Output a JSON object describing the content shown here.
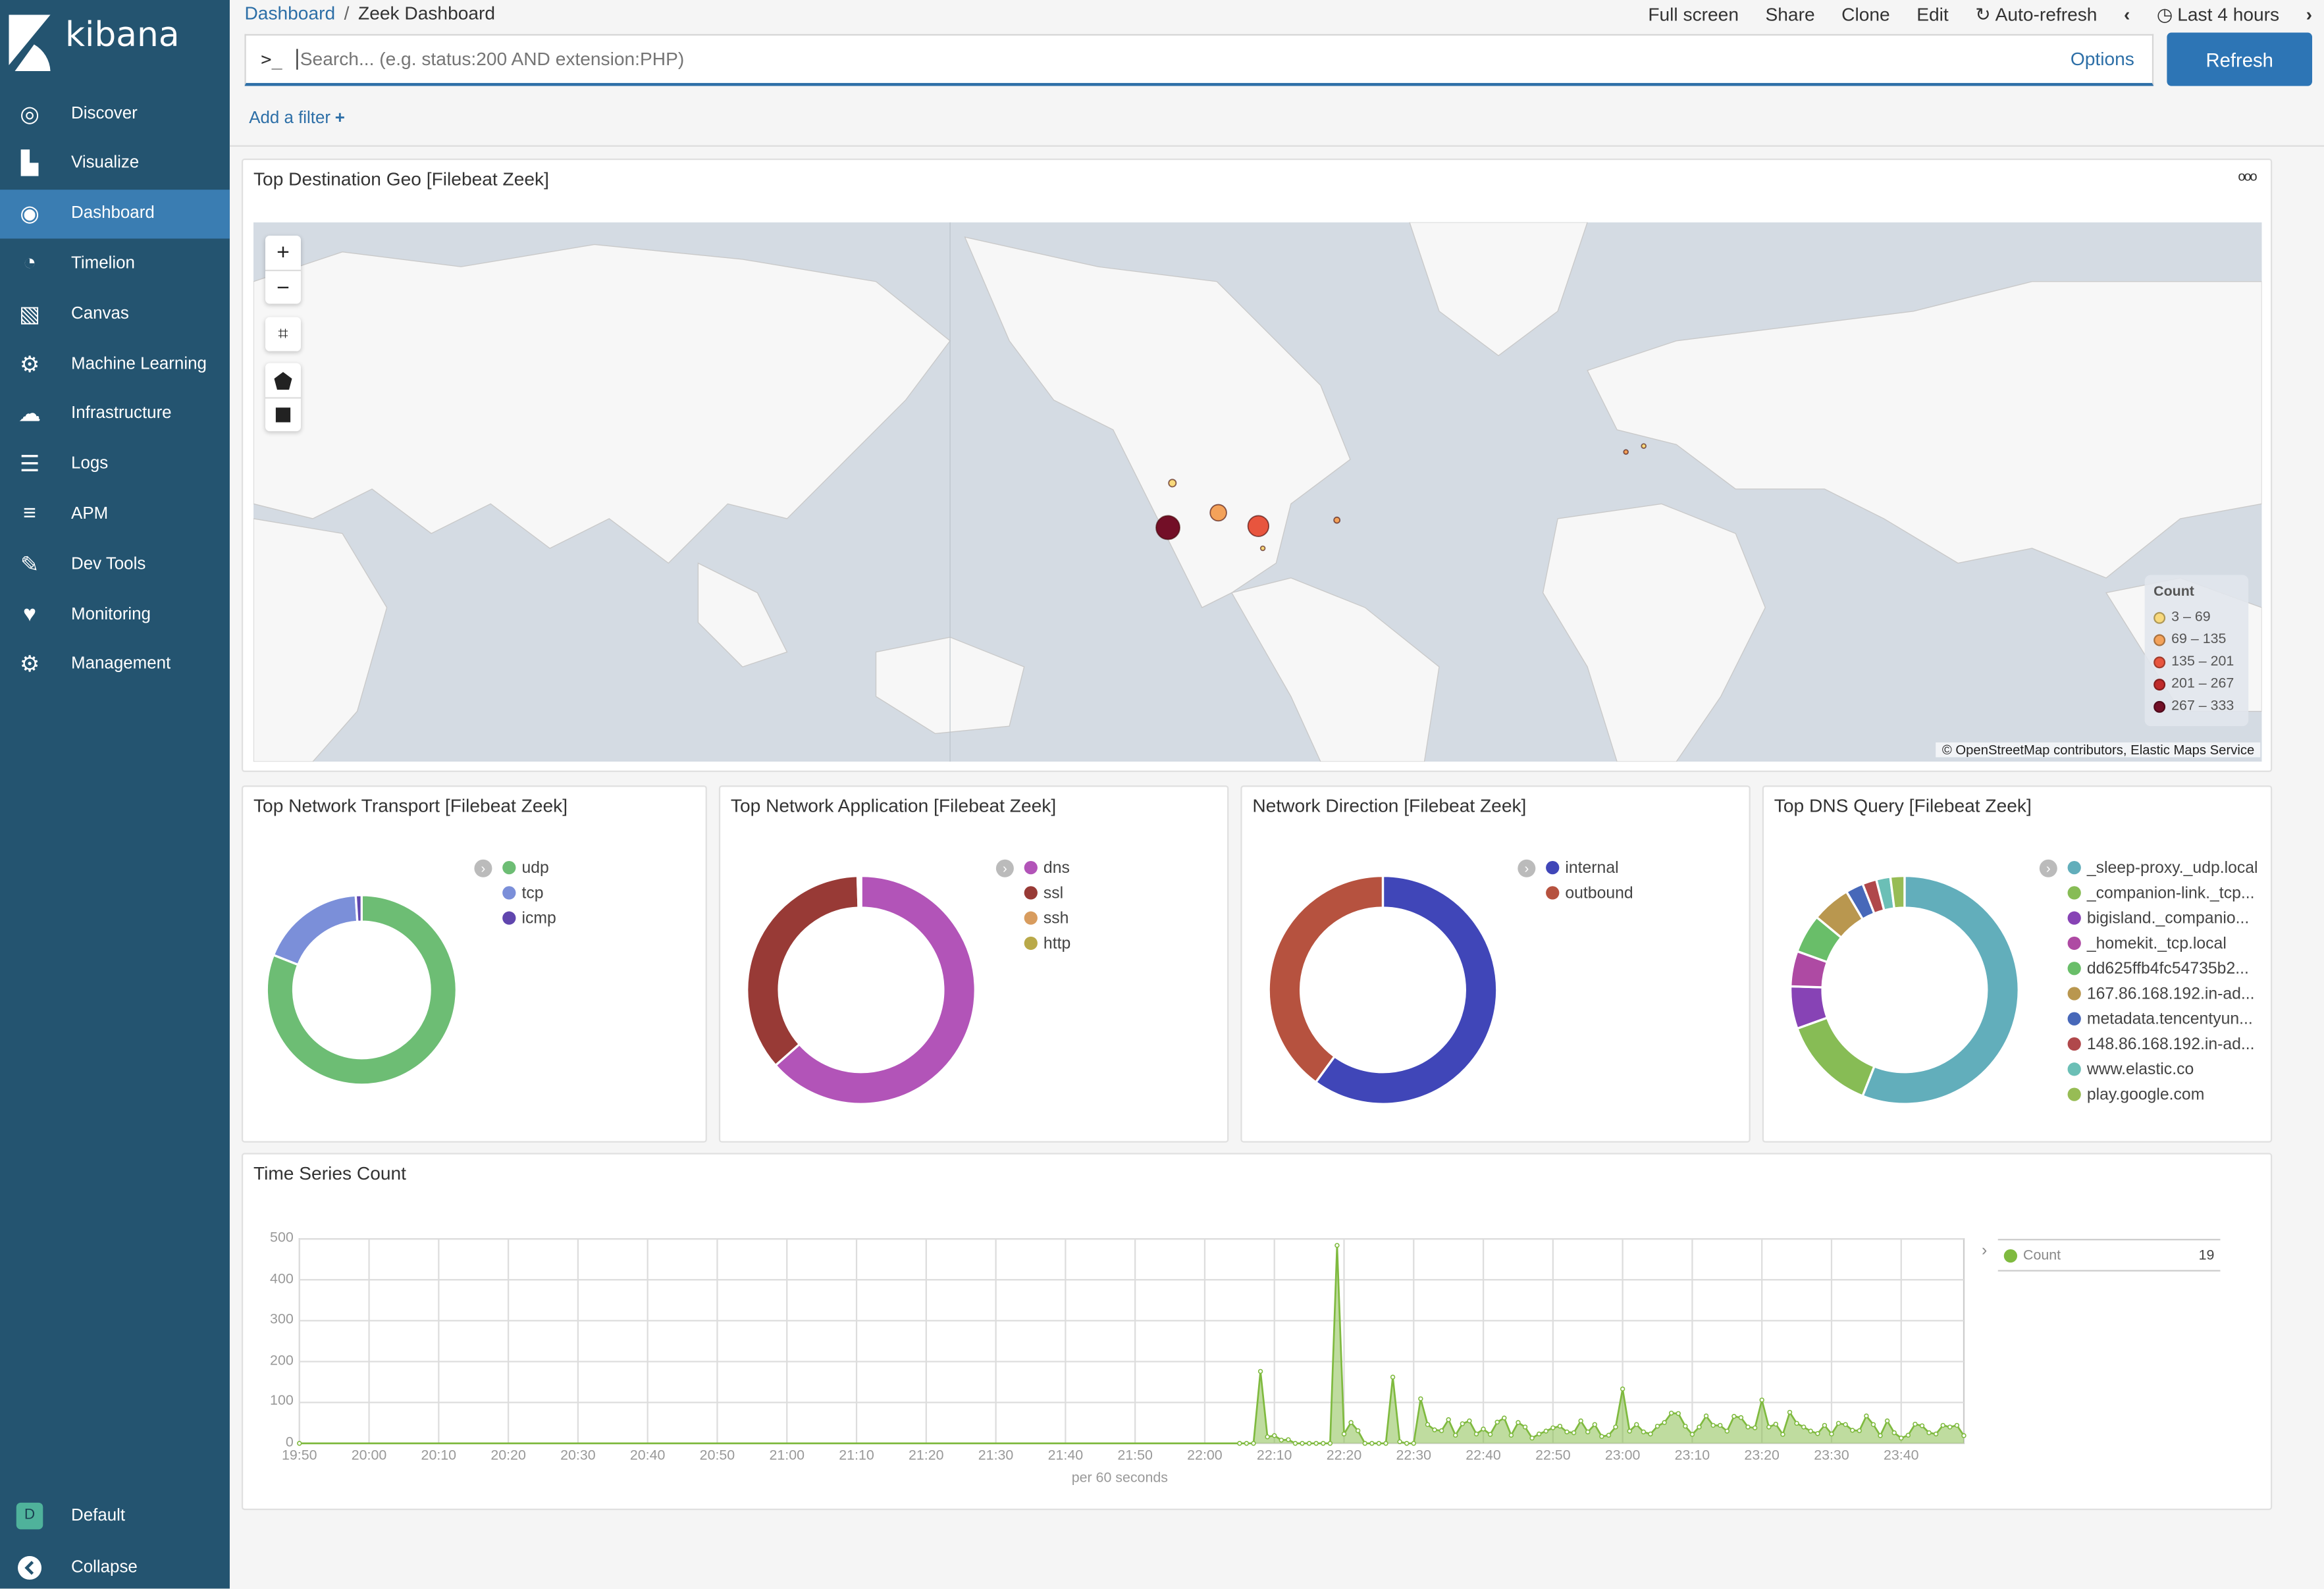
{
  "app": {
    "brand": "kibana"
  },
  "sidebar": {
    "items": [
      {
        "label": "Discover",
        "icon": "compass-icon"
      },
      {
        "label": "Visualize",
        "icon": "bar-chart-icon"
      },
      {
        "label": "Dashboard",
        "icon": "dashboard-icon",
        "active": true
      },
      {
        "label": "Timelion",
        "icon": "timelion-icon"
      },
      {
        "label": "Canvas",
        "icon": "canvas-icon"
      },
      {
        "label": "Machine Learning",
        "icon": "machine-learning-icon"
      },
      {
        "label": "Infrastructure",
        "icon": "infrastructure-icon"
      },
      {
        "label": "Logs",
        "icon": "logs-icon"
      },
      {
        "label": "APM",
        "icon": "apm-icon"
      },
      {
        "label": "Dev Tools",
        "icon": "wrench-icon"
      },
      {
        "label": "Monitoring",
        "icon": "heartbeat-icon"
      },
      {
        "label": "Management",
        "icon": "gear-icon"
      }
    ],
    "space": {
      "badge": "D",
      "label": "Default"
    },
    "collapse": "Collapse"
  },
  "header": {
    "breadcrumb": [
      "Dashboard",
      "Zeek Dashboard"
    ],
    "separator": "/",
    "actions": [
      "Full screen",
      "Share",
      "Clone",
      "Edit"
    ],
    "auto_refresh": "Auto-refresh",
    "time_range": "Last 4 hours"
  },
  "search": {
    "prompt": ">_",
    "placeholder": "Search... (e.g. status:200 AND extension:PHP)",
    "options": "Options",
    "refresh": "Refresh"
  },
  "filter": {
    "add": "Add a filter",
    "plus": "+"
  },
  "colors": {
    "sidebar": "#245470",
    "accent": "#2d75b5",
    "link": "#2d6fa7"
  },
  "map_panel": {
    "title": "Top Destination Geo [Filebeat Zeek]",
    "menu": "ooo",
    "legend_title": "Count",
    "legend": [
      {
        "label": "3 – 69",
        "color": "#f8d97c"
      },
      {
        "label": "69 – 135",
        "color": "#f3a25a"
      },
      {
        "label": "135 – 201",
        "color": "#e8553e"
      },
      {
        "label": "201 – 267",
        "color": "#bf2a2a"
      },
      {
        "label": "267 – 333",
        "color": "#730f27"
      }
    ],
    "attribution": "© OpenStreetMap contributors, Elastic Maps Service",
    "controls": [
      "zoom-in",
      "zoom-out",
      "fit-bounds",
      "draw-polygon",
      "draw-rectangle"
    ]
  },
  "chart_data": [
    {
      "type": "pie",
      "title": "Top Network Transport [Filebeat Zeek]",
      "donut": true,
      "legend_position": "right",
      "slices": [
        {
          "label": "udp",
          "value": 81,
          "color": "#6dbd74"
        },
        {
          "label": "tcp",
          "value": 18,
          "color": "#7b8fd9"
        },
        {
          "label": "icmp",
          "value": 1,
          "color": "#6046ae"
        }
      ]
    },
    {
      "type": "pie",
      "title": "Top Network Application [Filebeat Zeek]",
      "donut": true,
      "legend_position": "right",
      "slices": [
        {
          "label": "dns",
          "value": 63.5,
          "color": "#b254b8"
        },
        {
          "label": "ssl",
          "value": 36,
          "color": "#983a36"
        },
        {
          "label": "ssh",
          "value": 0.3,
          "color": "#d89c5e"
        },
        {
          "label": "http",
          "value": 0.2,
          "color": "#b9a949"
        }
      ]
    },
    {
      "type": "pie",
      "title": "Network Direction [Filebeat Zeek]",
      "donut": true,
      "legend_position": "right",
      "slices": [
        {
          "label": "internal",
          "value": 60,
          "color": "#4046b8"
        },
        {
          "label": "outbound",
          "value": 40,
          "color": "#b6523f"
        }
      ]
    },
    {
      "type": "pie",
      "title": "Top DNS Query [Filebeat Zeek]",
      "donut": true,
      "legend_position": "right",
      "slices": [
        {
          "label": "_sleep-proxy._udp.local",
          "value": 56,
          "color": "#62aebb"
        },
        {
          "label": "_companion-link._tcp...",
          "value": 13.5,
          "color": "#87bc55"
        },
        {
          "label": "bigisland._companio...",
          "value": 6,
          "color": "#8743b5"
        },
        {
          "label": "_homekit._tcp.local",
          "value": 5,
          "color": "#ae4aa3"
        },
        {
          "label": "dd625ffb4fc54735b2...",
          "value": 5.5,
          "color": "#69be69"
        },
        {
          "label": "167.86.168.192.in-ad...",
          "value": 5.5,
          "color": "#b9974f"
        },
        {
          "label": "metadata.tencentyun...",
          "value": 2.5,
          "color": "#4768b9"
        },
        {
          "label": "148.86.168.192.in-ad...",
          "value": 2,
          "color": "#b0484b"
        },
        {
          "label": "www.elastic.co",
          "value": 2,
          "color": "#6bbfb6"
        },
        {
          "label": "play.google.com",
          "value": 2,
          "color": "#97bc55"
        }
      ]
    },
    {
      "type": "area",
      "title": "Time Series Count",
      "xlabel": "per 60 seconds",
      "ylabel": "",
      "ylim": [
        0,
        500
      ],
      "yticks": [
        0,
        100,
        200,
        300,
        400,
        500
      ],
      "xlim": [
        "19:50",
        "23:49"
      ],
      "xticks": [
        "19:50",
        "20:00",
        "20:10",
        "20:20",
        "20:30",
        "20:40",
        "20:50",
        "21:00",
        "21:10",
        "21:20",
        "21:30",
        "21:40",
        "21:50",
        "22:00",
        "22:10",
        "22:20",
        "22:30",
        "22:40",
        "22:50",
        "23:00",
        "23:10",
        "23:20",
        "23:30",
        "23:40"
      ],
      "grid": true,
      "legend_position": "right",
      "series": [
        {
          "name": "Count",
          "legend_value": "19",
          "color": "#7fba3f",
          "points": [
            [
              "19:50",
              0
            ],
            [
              "22:05",
              0
            ],
            [
              "22:06",
              0
            ],
            [
              "22:07",
              0
            ],
            [
              "22:08",
              176
            ],
            [
              "22:09",
              16
            ],
            [
              "22:10",
              19
            ],
            [
              "22:11",
              8
            ],
            [
              "22:12",
              9
            ],
            [
              "22:13",
              0
            ],
            [
              "22:14",
              0
            ],
            [
              "22:15",
              0
            ],
            [
              "22:16",
              0
            ],
            [
              "22:17",
              0
            ],
            [
              "22:18",
              0
            ],
            [
              "22:19",
              484
            ],
            [
              "22:20",
              23
            ],
            [
              "22:21",
              51
            ],
            [
              "22:22",
              31
            ],
            [
              "22:23",
              0
            ],
            [
              "22:24",
              0
            ],
            [
              "22:25",
              0
            ],
            [
              "22:26",
              0
            ],
            [
              "22:27",
              162
            ],
            [
              "22:28",
              4
            ],
            [
              "22:29",
              0
            ],
            [
              "22:30",
              0
            ],
            [
              "22:31",
              109
            ],
            [
              "22:32",
              46
            ],
            [
              "22:33",
              33
            ],
            [
              "22:34",
              31
            ],
            [
              "22:35",
              58
            ],
            [
              "22:36",
              20
            ],
            [
              "22:37",
              48
            ],
            [
              "22:38",
              55
            ],
            [
              "22:39",
              23
            ],
            [
              "22:40",
              35
            ],
            [
              "22:41",
              22
            ],
            [
              "22:42",
              52
            ],
            [
              "22:43",
              62
            ],
            [
              "22:44",
              20
            ],
            [
              "22:45",
              51
            ],
            [
              "22:46",
              40
            ],
            [
              "22:47",
              13
            ],
            [
              "22:48",
              23
            ],
            [
              "22:49",
              30
            ],
            [
              "22:50",
              38
            ],
            [
              "22:51",
              42
            ],
            [
              "22:52",
              28
            ],
            [
              "22:53",
              26
            ],
            [
              "22:54",
              55
            ],
            [
              "22:55",
              28
            ],
            [
              "22:56",
              46
            ],
            [
              "22:57",
              17
            ],
            [
              "22:58",
              20
            ],
            [
              "22:59",
              40
            ],
            [
              "23:00",
              133
            ],
            [
              "23:01",
              30
            ],
            [
              "23:02",
              46
            ],
            [
              "23:03",
              28
            ],
            [
              "23:04",
              23
            ],
            [
              "23:05",
              42
            ],
            [
              "23:06",
              51
            ],
            [
              "23:07",
              74
            ],
            [
              "23:08",
              73
            ],
            [
              "23:09",
              42
            ],
            [
              "23:10",
              22
            ],
            [
              "23:11",
              40
            ],
            [
              "23:12",
              67
            ],
            [
              "23:13",
              44
            ],
            [
              "23:14",
              44
            ],
            [
              "23:15",
              30
            ],
            [
              "23:16",
              66
            ],
            [
              "23:17",
              63
            ],
            [
              "23:18",
              40
            ],
            [
              "23:19",
              38
            ],
            [
              "23:20",
              106
            ],
            [
              "23:21",
              40
            ],
            [
              "23:22",
              47
            ],
            [
              "23:23",
              22
            ],
            [
              "23:24",
              76
            ],
            [
              "23:25",
              49
            ],
            [
              "23:26",
              40
            ],
            [
              "23:27",
              30
            ],
            [
              "23:28",
              24
            ],
            [
              "23:29",
              44
            ],
            [
              "23:30",
              23
            ],
            [
              "23:31",
              49
            ],
            [
              "23:32",
              46
            ],
            [
              "23:33",
              32
            ],
            [
              "23:34",
              31
            ],
            [
              "23:35",
              67
            ],
            [
              "23:36",
              46
            ],
            [
              "23:37",
              19
            ],
            [
              "23:38",
              55
            ],
            [
              "23:39",
              26
            ],
            [
              "23:40",
              13
            ],
            [
              "23:41",
              20
            ],
            [
              "23:42",
              47
            ],
            [
              "23:43",
              43
            ],
            [
              "23:44",
              26
            ],
            [
              "23:45",
              23
            ],
            [
              "23:46",
              44
            ],
            [
              "23:47",
              40
            ],
            [
              "23:48",
              44
            ],
            [
              "23:49",
              19
            ]
          ]
        }
      ]
    }
  ]
}
